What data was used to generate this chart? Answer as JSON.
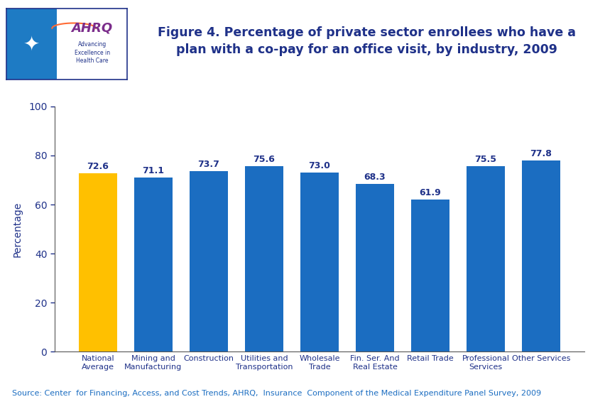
{
  "title": "Figure 4. Percentage of private sector enrollees who have a\nplan with a co-pay for an office visit, by industry, 2009",
  "ylabel": "Percentage",
  "categories": [
    "National\nAverage",
    "Mining and\nManufacturing",
    "Construction",
    "Utilities and\nTransportation",
    "Wholesale\nTrade",
    "Fin. Ser. And\nReal Estate",
    "Retail Trade",
    "Professional\nServices",
    "Other Services"
  ],
  "values": [
    72.6,
    71.1,
    73.7,
    75.6,
    73.0,
    68.3,
    61.9,
    75.5,
    77.8
  ],
  "bar_colors": [
    "#FFC000",
    "#1B6DC1",
    "#1B6DC1",
    "#1B6DC1",
    "#1B6DC1",
    "#1B6DC1",
    "#1B6DC1",
    "#1B6DC1",
    "#1B6DC1"
  ],
  "ylim": [
    0,
    100
  ],
  "yticks": [
    0,
    20,
    40,
    60,
    80,
    100
  ],
  "title_color": "#1F3189",
  "ylabel_color": "#1F3189",
  "label_color": "#1F3189",
  "tick_color": "#1F3189",
  "source_text": "Source: Center  for Financing, Access, and Cost Trends, AHRQ,  Insurance  Component of the Medical Expenditure Panel Survey, 2009",
  "background_color": "#FFFFFF",
  "header_line_color": "#1F3189",
  "title_fontsize": 12.5,
  "bar_label_fontsize": 9,
  "ylabel_fontsize": 10,
  "xlabel_fontsize": 8,
  "source_fontsize": 8,
  "ytick_fontsize": 10
}
